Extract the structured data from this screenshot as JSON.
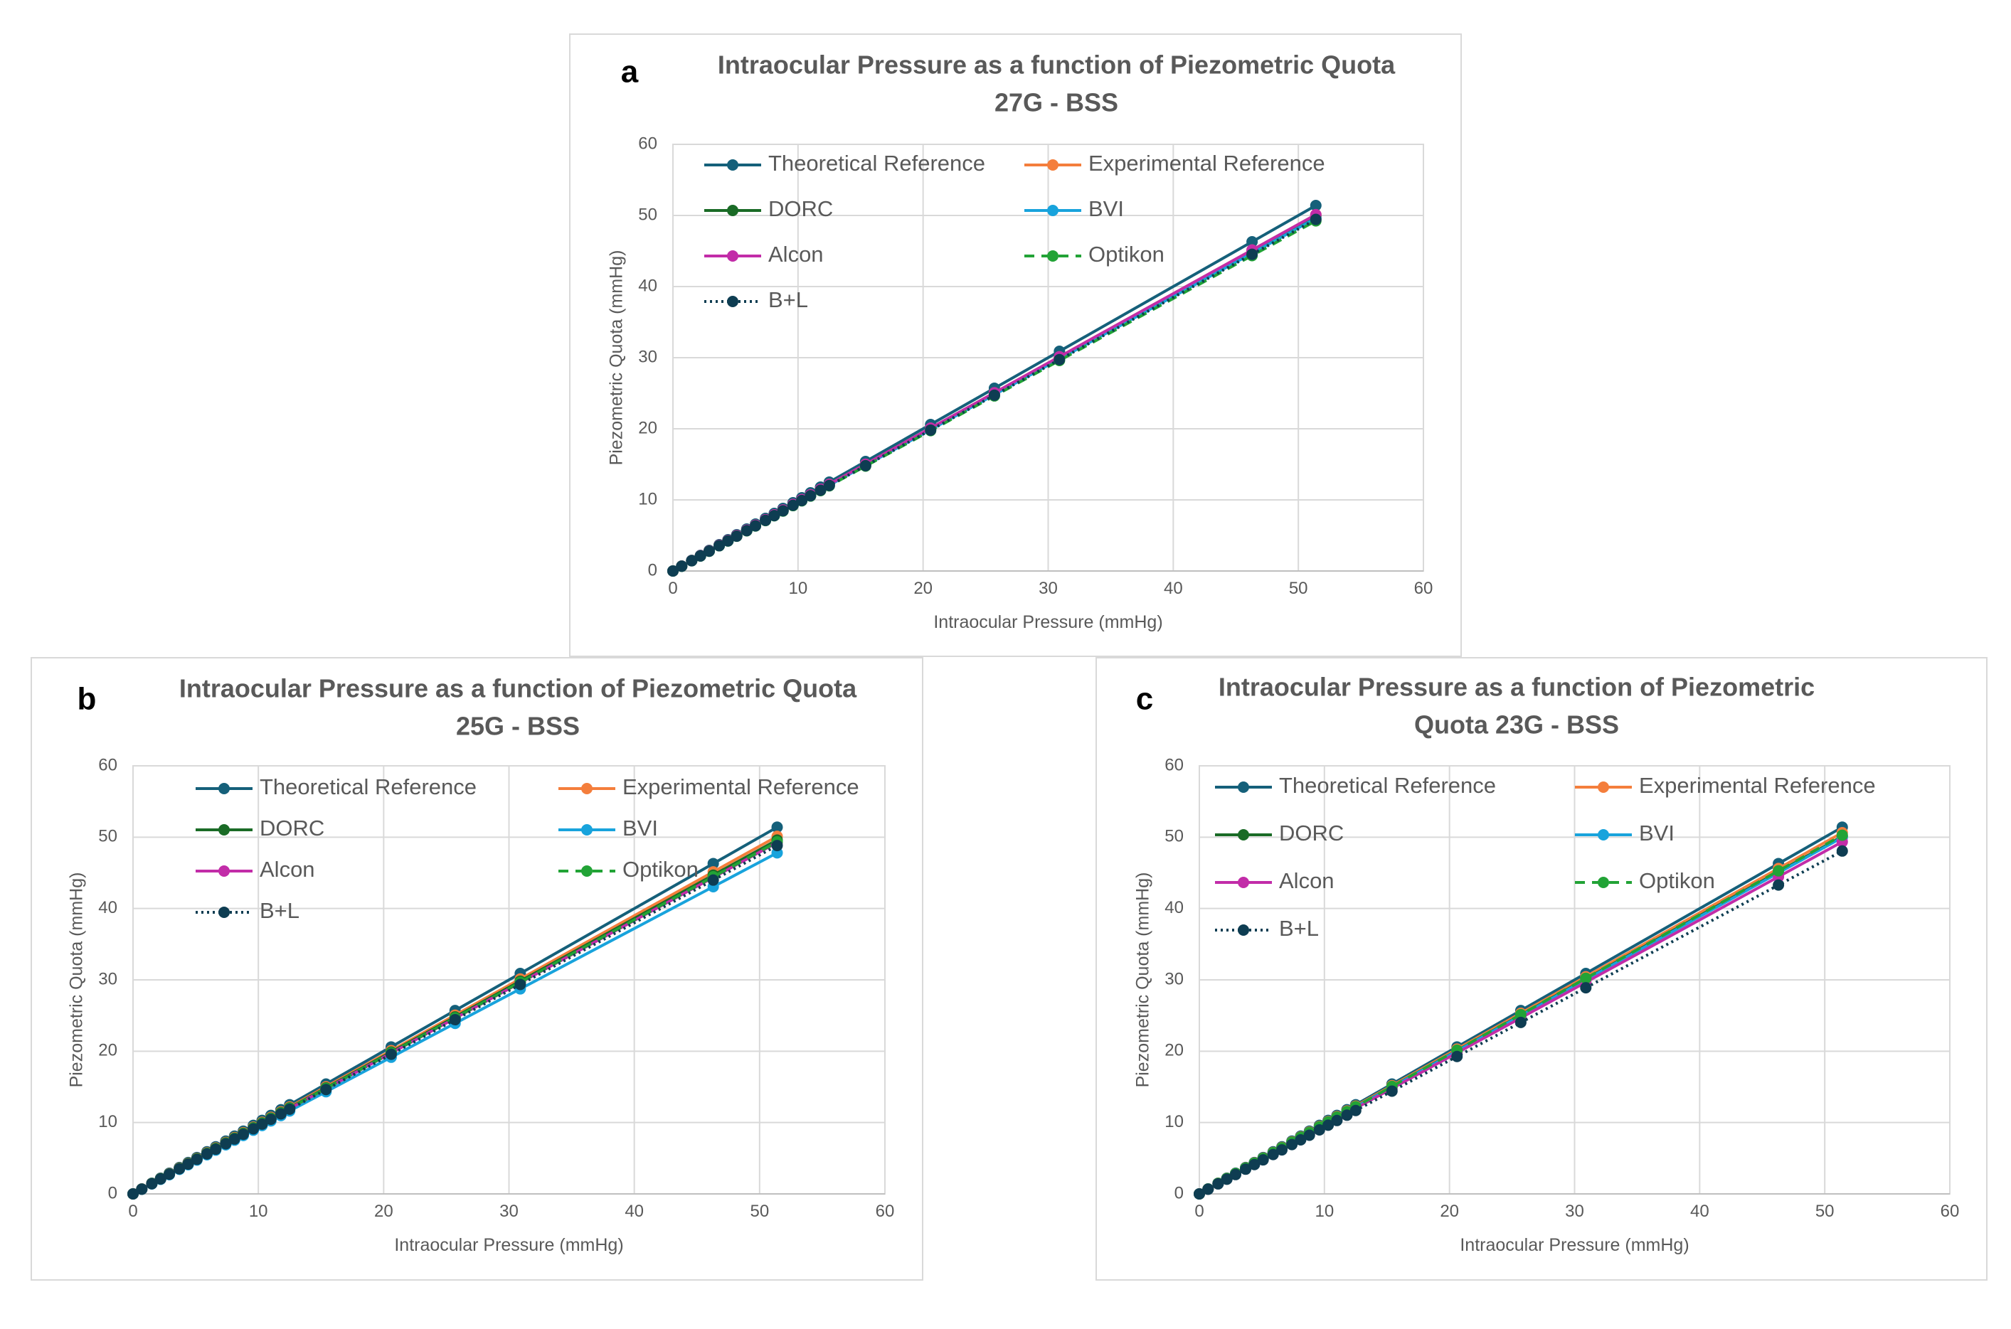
{
  "chart_data": [
    {
      "type": "line",
      "panel_label": "a",
      "title_lines": [
        "Intraocular Pressure as a function of Piezometric Quota",
        "27G - BSS"
      ],
      "xlabel": "Intraocular Pressure (mmHg)",
      "ylabel": "Piezometric Quota (mmHg)",
      "xlim": [
        0,
        60
      ],
      "ylim": [
        0,
        60
      ],
      "xticks": [
        "0",
        "10",
        "20",
        "30",
        "40",
        "50",
        "60"
      ],
      "yticks": [
        "0",
        "10",
        "20",
        "30",
        "40",
        "50",
        "60"
      ],
      "grid": true,
      "legend_position": "top-left, inside plot, two columns",
      "x": [
        0,
        0.7,
        1.5,
        2.2,
        2.9,
        3.7,
        4.4,
        5.1,
        5.9,
        6.6,
        7.4,
        8.1,
        8.8,
        9.6,
        10.3,
        11.0,
        11.8,
        12.5,
        15.4,
        20.6,
        25.7,
        30.9,
        46.3,
        51.4
      ],
      "series": [
        {
          "name": "Theoretical Reference",
          "color": "#15607a",
          "style": "solid",
          "slope": 1.0
        },
        {
          "name": "Experimental Reference",
          "color": "#f47e3c",
          "style": "solid",
          "slope": 0.975
        },
        {
          "name": "DORC",
          "color": "#1a6b26",
          "style": "solid",
          "slope": 0.97
        },
        {
          "name": "BVI",
          "color": "#18a3dc",
          "style": "solid",
          "slope": 0.965
        },
        {
          "name": "Alcon",
          "color": "#c22ca8",
          "style": "solid",
          "slope": 0.975
        },
        {
          "name": "Optikon",
          "color": "#22a336",
          "style": "dashed",
          "slope": 0.958
        },
        {
          "name": "B+L",
          "color": "#0e3d52",
          "style": "dotted",
          "slope": 0.962
        }
      ]
    },
    {
      "type": "line",
      "panel_label": "b",
      "title_lines": [
        "Intraocular Pressure as a function of Piezometric Quota",
        "25G - BSS"
      ],
      "xlabel": "Intraocular Pressure (mmHg)",
      "ylabel": "Piezometric Quota (mmHg)",
      "xlim": [
        0,
        60
      ],
      "ylim": [
        0,
        60
      ],
      "xticks": [
        "0",
        "10",
        "20",
        "30",
        "40",
        "50",
        "60"
      ],
      "yticks": [
        "0",
        "10",
        "20",
        "30",
        "40",
        "50",
        "60"
      ],
      "grid": true,
      "legend_position": "top-left, inside plot, two columns",
      "x": [
        0,
        0.7,
        1.5,
        2.2,
        2.9,
        3.7,
        4.4,
        5.1,
        5.9,
        6.6,
        7.4,
        8.1,
        8.8,
        9.6,
        10.3,
        11.0,
        11.8,
        12.5,
        15.4,
        20.6,
        25.7,
        30.9,
        46.3,
        51.4
      ],
      "series": [
        {
          "name": "Theoretical Reference",
          "color": "#15607a",
          "style": "solid",
          "slope": 1.0
        },
        {
          "name": "Experimental Reference",
          "color": "#f47e3c",
          "style": "solid",
          "slope": 0.975
        },
        {
          "name": "DORC",
          "color": "#1a6b26",
          "style": "solid",
          "slope": 0.965
        },
        {
          "name": "BVI",
          "color": "#18a3dc",
          "style": "solid",
          "slope": 0.93
        },
        {
          "name": "Alcon",
          "color": "#c22ca8",
          "style": "solid",
          "slope": 0.958
        },
        {
          "name": "Optikon",
          "color": "#22a336",
          "style": "dashed",
          "slope": 0.96
        },
        {
          "name": "B+L",
          "color": "#0e3d52",
          "style": "dotted",
          "slope": 0.95
        }
      ]
    },
    {
      "type": "line",
      "panel_label": "c",
      "title_lines": [
        "Intraocular Pressure as a function of Piezometric",
        "Quota 23G - BSS"
      ],
      "xlabel": "Intraocular Pressure (mmHg)",
      "ylabel": "Piezometric Quota (mmHg)",
      "xlim": [
        0,
        60
      ],
      "ylim": [
        0,
        60
      ],
      "xticks": [
        "0",
        "10",
        "20",
        "30",
        "40",
        "50",
        "60"
      ],
      "yticks": [
        "0",
        "10",
        "20",
        "30",
        "40",
        "50",
        "60"
      ],
      "grid": true,
      "legend_position": "top-left, inside plot, two columns",
      "x": [
        0,
        0.7,
        1.5,
        2.2,
        2.9,
        3.7,
        4.4,
        5.1,
        5.9,
        6.6,
        7.4,
        8.1,
        8.8,
        9.6,
        10.3,
        11.0,
        11.8,
        12.5,
        15.4,
        20.6,
        25.7,
        30.9,
        46.3,
        51.4
      ],
      "series": [
        {
          "name": "Theoretical Reference",
          "color": "#15607a",
          "style": "solid",
          "slope": 1.0
        },
        {
          "name": "Experimental Reference",
          "color": "#f47e3c",
          "style": "solid",
          "slope": 0.985
        },
        {
          "name": "DORC",
          "color": "#1a6b26",
          "style": "solid",
          "slope": 0.975
        },
        {
          "name": "BVI",
          "color": "#18a3dc",
          "style": "solid",
          "slope": 0.972
        },
        {
          "name": "Alcon",
          "color": "#c22ca8",
          "style": "solid",
          "slope": 0.96
        },
        {
          "name": "Optikon",
          "color": "#22a336",
          "style": "dashed",
          "slope": 0.978
        },
        {
          "name": "B+L",
          "color": "#0e3d52",
          "style": "dotted",
          "slope": 0.935
        }
      ]
    }
  ]
}
